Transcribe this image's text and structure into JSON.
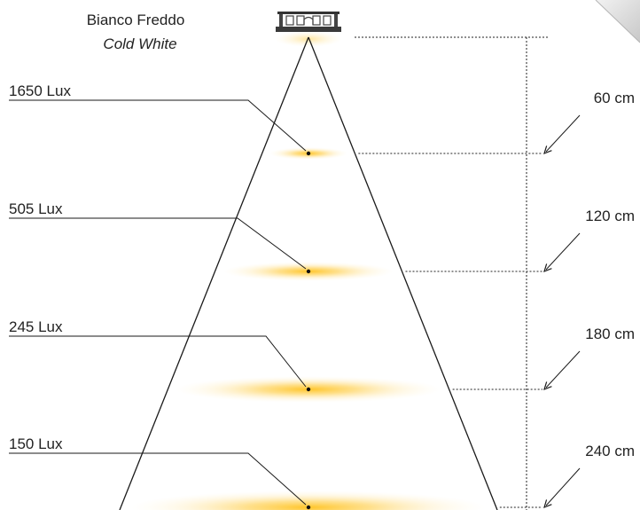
{
  "title": {
    "main": "Bianco Freddo",
    "sub": "Cold White"
  },
  "levels": [
    {
      "lux_label": "1650 Lux",
      "distance_label": "60 cm",
      "lux": 1650,
      "distance_cm": 60
    },
    {
      "lux_label": "505 Lux",
      "distance_label": "120 cm",
      "lux": 505,
      "distance_cm": 120
    },
    {
      "lux_label": "245 Lux",
      "distance_label": "180 cm",
      "lux": 245,
      "distance_cm": 180
    },
    {
      "lux_label": "150 Lux",
      "distance_label": "240 cm",
      "lux": 150,
      "distance_cm": 240
    }
  ],
  "colors": {
    "glow": "#ffc93c",
    "line": "#1a1a1a",
    "fold": "#cfcfcf"
  },
  "icons": {
    "lamp": "led-fixture-icon"
  }
}
